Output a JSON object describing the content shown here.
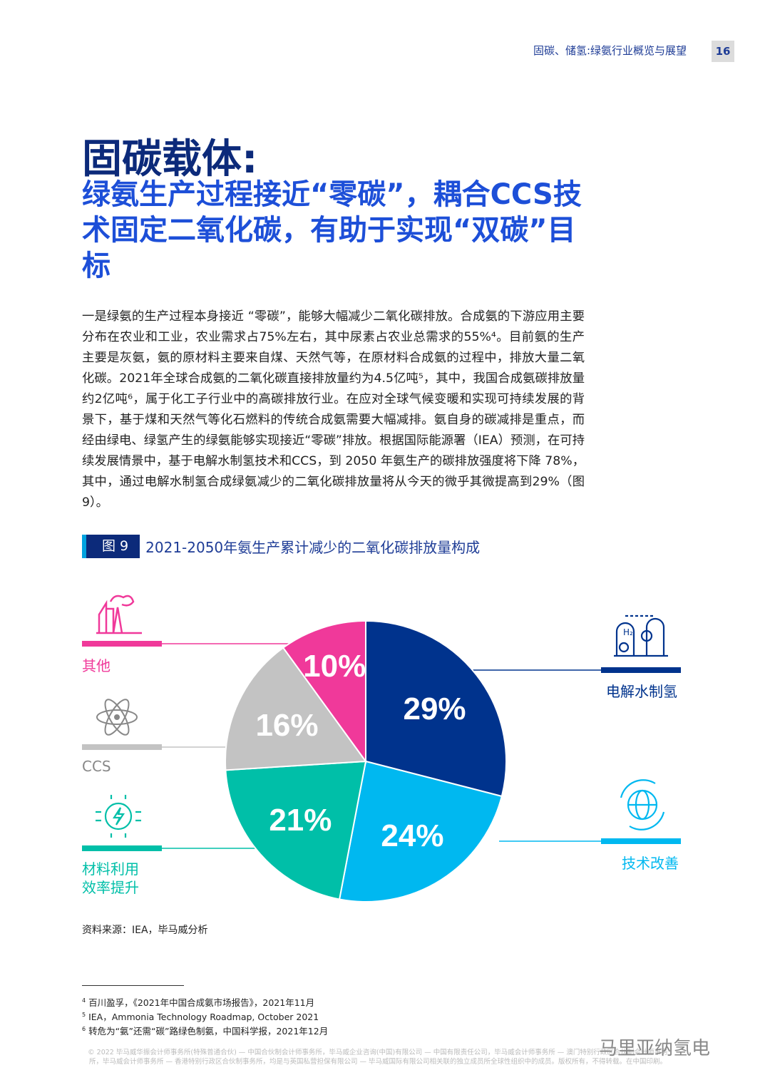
{
  "header": {
    "title": "固碳、储氢:绿氨行业概览与展望",
    "page": "16"
  },
  "title": {
    "main": "固碳载体:",
    "sub": "绿氨生产过程接近“零碳”，耦合CCS技术固定二氧化碳，有助于实现“双碳”目标"
  },
  "body": "一是绿氨的生产过程本身接近 “零碳”，能够大幅减少二氧化碳排放。合成氨的下游应用主要分布在农业和工业，农业需求占75%左右，其中尿素占农业总需求的55%⁴。目前氨的生产主要是灰氨，氨的原材料主要来自煤、天然气等，在原材料合成氨的过程中，排放大量二氧化碳。2021年全球合成氨的二氧化碳直接排放量约为4.5亿吨⁵，其中，我国合成氨碳排放量约2亿吨⁶，属于化工子行业中的高碳排放行业。在应对全球气候变暖和实现可持续发展的背景下，基于煤和天然气等化石燃料的传统合成氨需要大幅减排。氨自身的碳减排是重点，而经由绿电、绿氢产生的绿氨能够实现接近“零碳”排放。根据国际能源署（IEA）预测，在可持续发展情景中，基于电解水制氢技术和CCS，到 2050 年氨生产的碳排放强度将下降 78%，其中，通过电解水制氢合成绿氨减少的二氧化碳排放量将从今天的微乎其微提高到29%（图 9）。",
  "figure": {
    "tag": "图 9",
    "title": "2021-2050年氨生产累计减少的二氧化碳排放量构成"
  },
  "chart_data": {
    "type": "pie",
    "title": "2021-2050年氨生产累计减少的二氧化碳排放量构成",
    "slices": [
      {
        "name": "电解水制氢",
        "value": 29,
        "label": "29%",
        "color": "#00338d",
        "icon": "hydrogen-plant-icon"
      },
      {
        "name": "技术改善",
        "value": 24,
        "label": "24%",
        "color": "#00b8f0",
        "icon": "globe-cycle-icon"
      },
      {
        "name": "材料利用效率提升",
        "display": "材料利用\n效率提升",
        "value": 21,
        "label": "21%",
        "color": "#00bfa8",
        "icon": "energy-bolt-icon"
      },
      {
        "name": "CCS",
        "value": 16,
        "label": "16%",
        "color": "#c3c3c3",
        "icon": "atom-icon"
      },
      {
        "name": "其他",
        "value": 10,
        "label": "10%",
        "color": "#f0399a",
        "icon": "factory-icon"
      }
    ]
  },
  "source": "资料来源：IEA，毕马威分析",
  "footnotes": [
    {
      "n": "4",
      "text": "百川盈孚，《2021年中国合成氨市场报告》，2021年11月"
    },
    {
      "n": "5",
      "text": "IEA，Ammonia Technology Roadmap, October 2021"
    },
    {
      "n": "6",
      "text": "转危为“氨”还需“碳”路绿色制氨，中国科学报，2021年12月"
    }
  ],
  "copyright": "© 2022 毕马威华振会计师事务所(特殊普通合伙) — 中国合伙制会计师事务所，毕马威企业咨询(中国)有限公司 — 中国有限责任公司，毕马威会计师事务所 — 澳门特别行政区合伙制会计师事务所，毕马威会计师事务所 — 香港特别行政区合伙制事务所，均是与英国私营担保有限公司 — 毕马威国际有限公司相关联的独立成员所全球性组织中的成员。版权所有，不得转载。在中国印刷。",
  "watermark": "马里亚纳氢电"
}
